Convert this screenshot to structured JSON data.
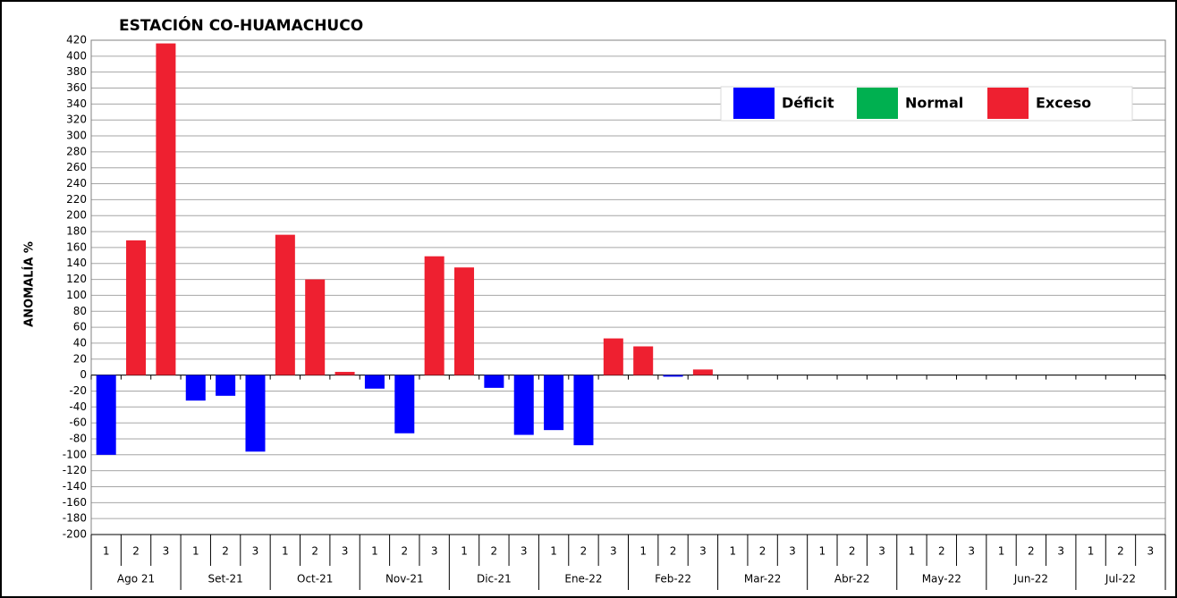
{
  "chart_data": {
    "type": "bar",
    "title": "ESTACIÓN CO-HUAMACHUCO",
    "y_label": "ANOMALÍA %",
    "categories": [
      "1",
      "2",
      "3",
      "1",
      "2",
      "3",
      "1",
      "2",
      "3",
      "1",
      "2",
      "3",
      "1",
      "2",
      "3",
      "1",
      "2",
      "3",
      "1",
      "2",
      "3",
      "1",
      "2",
      "3",
      "1",
      "2",
      "3",
      "1",
      "2",
      "3",
      "1",
      "2",
      "3",
      "1",
      "2",
      "3"
    ],
    "groups": [
      "Ago 21",
      "Set-21",
      "Oct-21",
      "Nov-21",
      "Dic-21",
      "Ene-22",
      "Feb-22",
      "Mar-22",
      "Abr-22",
      "May-22",
      "Jun-22",
      "Jul-22"
    ],
    "series": [
      {
        "name": "Déficit",
        "color": "#0000ff",
        "values": [
          -100,
          null,
          null,
          -32,
          -26,
          -96,
          null,
          null,
          null,
          -17,
          -73,
          null,
          null,
          -16,
          -75,
          -69,
          -88,
          null,
          null,
          -2,
          null,
          null,
          null,
          null,
          null,
          null,
          null,
          null,
          null,
          null,
          null,
          null,
          null,
          null,
          null,
          null
        ]
      },
      {
        "name": "Normal",
        "color": "#00b050",
        "values": [
          null,
          null,
          null,
          null,
          null,
          null,
          null,
          null,
          null,
          null,
          null,
          null,
          null,
          null,
          null,
          null,
          null,
          null,
          null,
          null,
          null,
          null,
          null,
          null,
          null,
          null,
          null,
          null,
          null,
          null,
          null,
          null,
          null,
          null,
          null,
          null
        ]
      },
      {
        "name": "Exceso",
        "color": "#ee2030",
        "values": [
          null,
          169,
          416,
          null,
          null,
          null,
          176,
          120,
          4,
          null,
          null,
          149,
          135,
          null,
          null,
          null,
          null,
          46,
          36,
          null,
          7,
          null,
          null,
          null,
          null,
          null,
          null,
          null,
          null,
          null,
          null,
          null,
          null,
          null,
          null,
          null
        ]
      }
    ],
    "ylim": [
      -200,
      420
    ],
    "yticks": [
      -200,
      -180,
      -160,
      -140,
      -120,
      -100,
      -80,
      -60,
      -40,
      -20,
      0,
      20,
      40,
      60,
      80,
      100,
      120,
      140,
      160,
      180,
      200,
      220,
      240,
      260,
      280,
      300,
      320,
      340,
      360,
      380,
      400,
      420
    ],
    "grid": true,
    "legend": "top-right"
  }
}
